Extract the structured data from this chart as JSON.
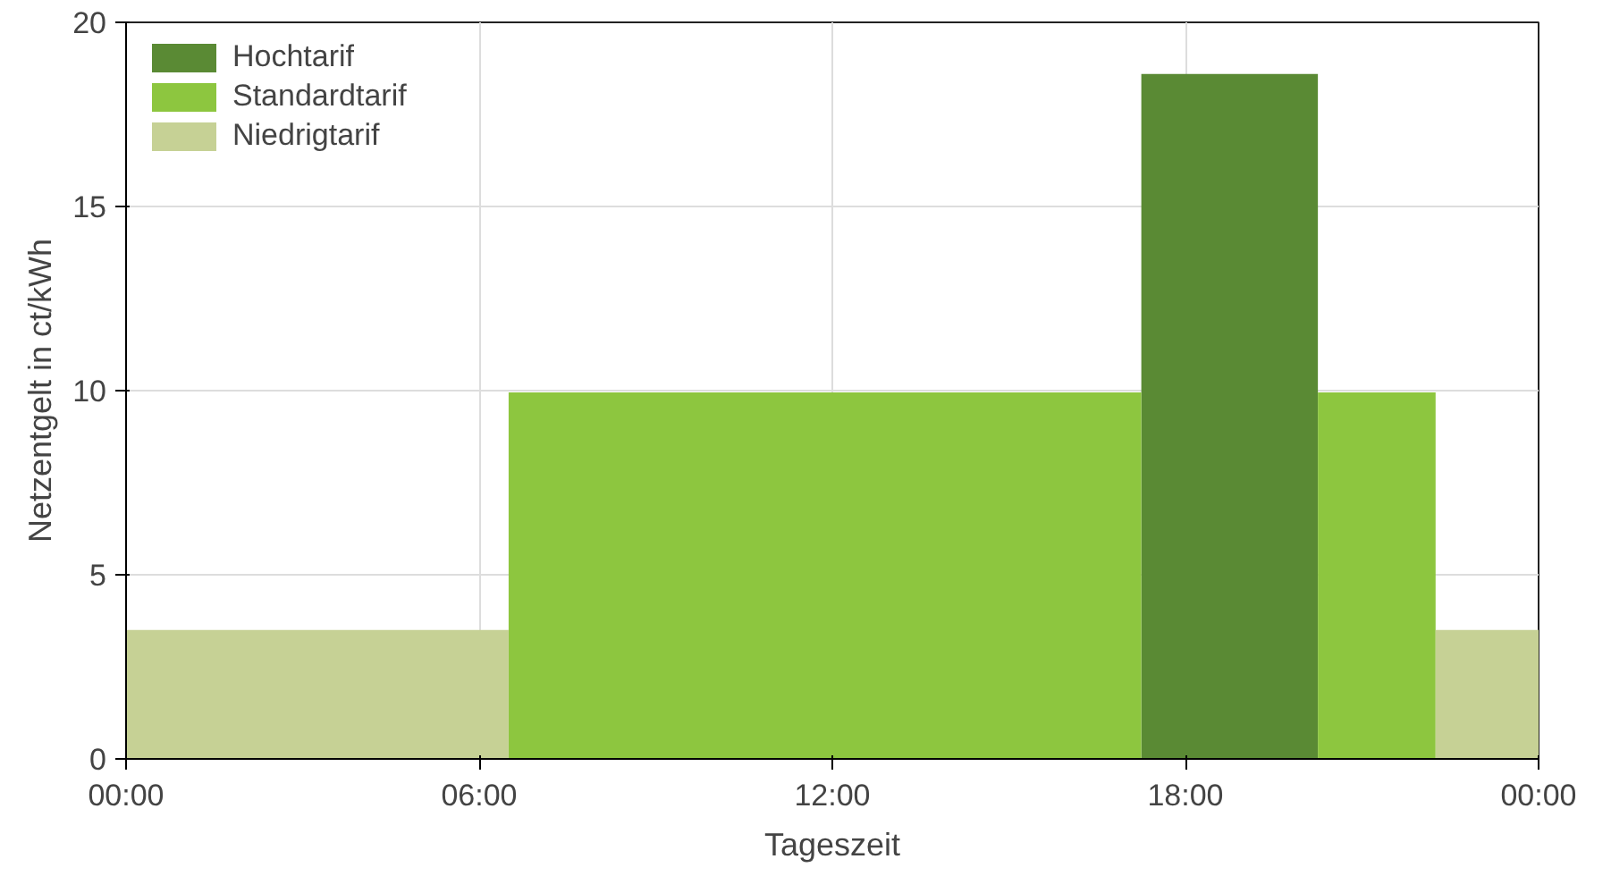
{
  "chart_data": {
    "type": "area",
    "xlabel": "Tageszeit",
    "ylabel": "Netzentgelt in ct/kWh",
    "series": [
      {
        "name": "Hochtarif",
        "color": "#5a8a34",
        "x": [
          17.25,
          17.25,
          20.25,
          20.25
        ],
        "values": [
          0,
          18.6,
          18.6,
          0
        ]
      },
      {
        "name": "Standardtarif",
        "color": "#8dc63f",
        "x": [
          6.5,
          6.5,
          17.25,
          17.25,
          20.25,
          20.25,
          22.25,
          22.25
        ],
        "values": [
          0,
          9.95,
          9.95,
          0,
          0,
          9.95,
          9.95,
          0
        ]
      },
      {
        "name": "Niedrigtarif",
        "color": "#c6d195",
        "x": [
          0,
          6.5,
          6.5,
          22.25,
          22.25,
          24
        ],
        "values": [
          3.5,
          3.5,
          0,
          0,
          3.5,
          3.5
        ]
      }
    ],
    "xlim": [
      0,
      24
    ],
    "xticks": [
      {
        "value": 0,
        "label": "00:00"
      },
      {
        "value": 6,
        "label": "06:00"
      },
      {
        "value": 12,
        "label": "12:00"
      },
      {
        "value": 18,
        "label": "18:00"
      },
      {
        "value": 24,
        "label": "00:00"
      }
    ],
    "ylim": [
      0,
      20
    ],
    "yticks": [
      0,
      5,
      10,
      15,
      20
    ],
    "grid": true,
    "legend": "top left"
  }
}
